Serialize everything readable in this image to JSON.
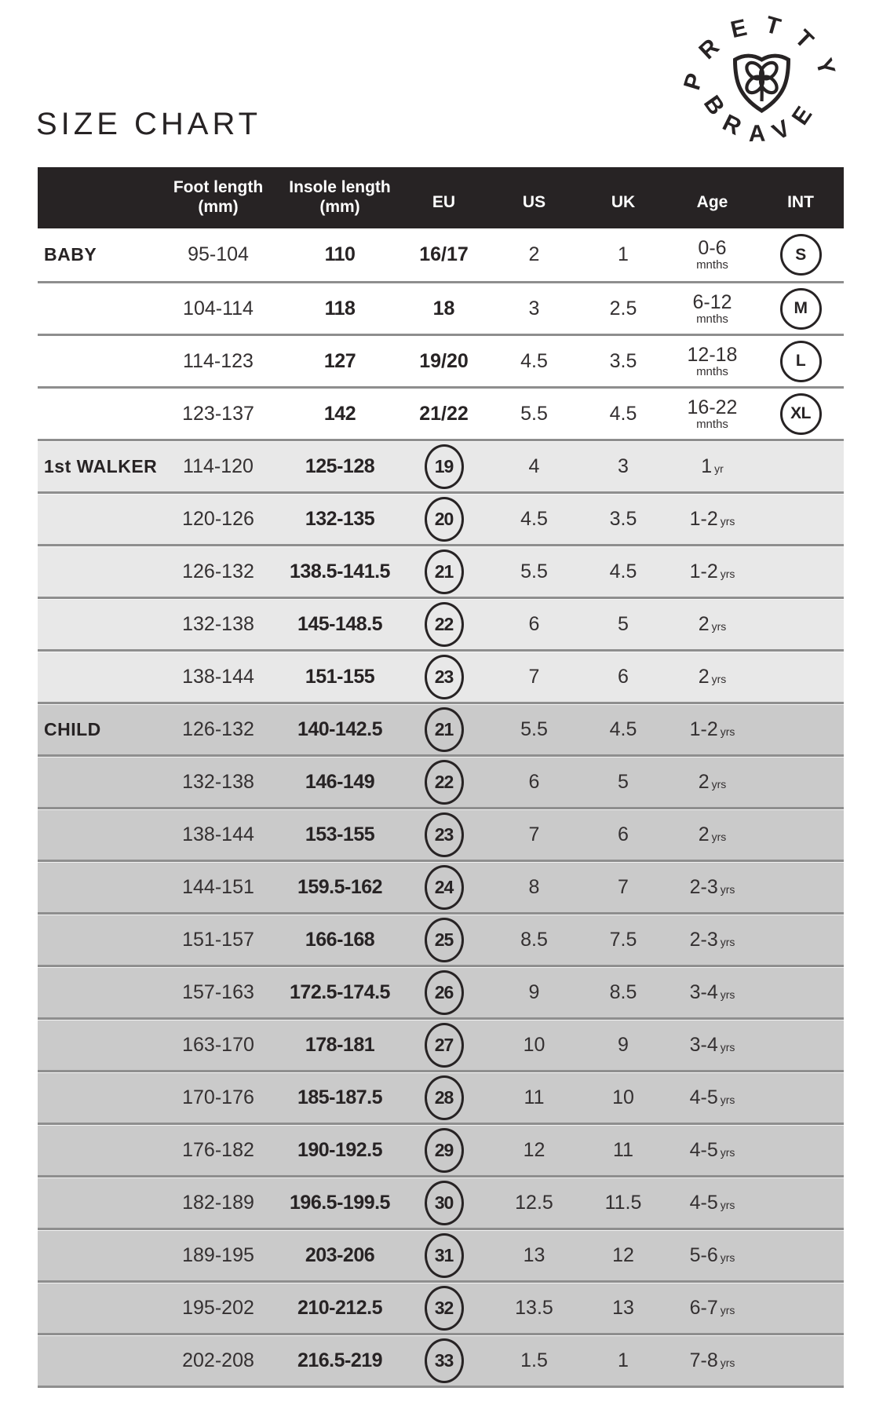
{
  "page": {
    "title": "SIZE CHART"
  },
  "logo": {
    "arc_top": "PRETTY",
    "arc_bottom": "BRAVE",
    "icon": "shield-clover",
    "color": "#272324"
  },
  "colors": {
    "header_bg": "#272324",
    "header_text": "#ffffff",
    "baby_bg": "#ffffff",
    "walker_bg": "#e8e8e8",
    "child_bg": "#cacaca",
    "separator": "#8e8e8e"
  },
  "table": {
    "header": {
      "category": "",
      "foot_length": {
        "line1": "Foot length",
        "line2": "(mm)"
      },
      "insole_length": {
        "line1": "Insole length",
        "line2": "(mm)"
      },
      "eu": "EU",
      "us": "US",
      "uk": "UK",
      "age": "Age",
      "int": "INT"
    },
    "sections": [
      {
        "name": "BABY",
        "bg": "#ffffff",
        "age_layout": "stacked",
        "eu_circled": false,
        "rows": [
          {
            "foot": "95-104",
            "insole": "110",
            "eu": "16/17",
            "us": "2",
            "uk": "1",
            "age": "0-6",
            "age_unit": "mnths",
            "int": "S"
          },
          {
            "foot": "104-114",
            "insole": "118",
            "eu": "18",
            "us": "3",
            "uk": "2.5",
            "age": "6-12",
            "age_unit": "mnths",
            "int": "M"
          },
          {
            "foot": "114-123",
            "insole": "127",
            "eu": "19/20",
            "us": "4.5",
            "uk": "3.5",
            "age": "12-18",
            "age_unit": "mnths",
            "int": "L"
          },
          {
            "foot": "123-137",
            "insole": "142",
            "eu": "21/22",
            "us": "5.5",
            "uk": "4.5",
            "age": "16-22",
            "age_unit": "mnths",
            "int": "XL"
          }
        ]
      },
      {
        "name": "1st WALKER",
        "bg": "#e8e8e8",
        "age_layout": "inline",
        "eu_circled": true,
        "rows": [
          {
            "foot": "114-120",
            "insole": "125-128",
            "eu": "19",
            "us": "4",
            "uk": "3",
            "age": "1",
            "age_unit": "yr"
          },
          {
            "foot": "120-126",
            "insole": "132-135",
            "eu": "20",
            "us": "4.5",
            "uk": "3.5",
            "age": "1-2",
            "age_unit": "yrs"
          },
          {
            "foot": "126-132",
            "insole": "138.5-141.5",
            "eu": "21",
            "us": "5.5",
            "uk": "4.5",
            "age": "1-2",
            "age_unit": "yrs"
          },
          {
            "foot": "132-138",
            "insole": "145-148.5",
            "eu": "22",
            "us": "6",
            "uk": "5",
            "age": "2",
            "age_unit": "yrs"
          },
          {
            "foot": "138-144",
            "insole": "151-155",
            "eu": "23",
            "us": "7",
            "uk": "6",
            "age": "2",
            "age_unit": "yrs"
          }
        ]
      },
      {
        "name": "CHILD",
        "bg": "#cacaca",
        "age_layout": "inline",
        "eu_circled": true,
        "rows": [
          {
            "foot": "126-132",
            "insole": "140-142.5",
            "eu": "21",
            "us": "5.5",
            "uk": "4.5",
            "age": "1-2",
            "age_unit": "yrs"
          },
          {
            "foot": "132-138",
            "insole": "146-149",
            "eu": "22",
            "us": "6",
            "uk": "5",
            "age": "2",
            "age_unit": "yrs"
          },
          {
            "foot": "138-144",
            "insole": "153-155",
            "eu": "23",
            "us": "7",
            "uk": "6",
            "age": "2",
            "age_unit": "yrs"
          },
          {
            "foot": "144-151",
            "insole": "159.5-162",
            "eu": "24",
            "us": "8",
            "uk": "7",
            "age": "2-3",
            "age_unit": "yrs"
          },
          {
            "foot": "151-157",
            "insole": "166-168",
            "eu": "25",
            "us": "8.5",
            "uk": "7.5",
            "age": "2-3",
            "age_unit": "yrs"
          },
          {
            "foot": "157-163",
            "insole": "172.5-174.5",
            "eu": "26",
            "us": "9",
            "uk": "8.5",
            "age": "3-4",
            "age_unit": "yrs"
          },
          {
            "foot": "163-170",
            "insole": "178-181",
            "eu": "27",
            "us": "10",
            "uk": "9",
            "age": "3-4",
            "age_unit": "yrs"
          },
          {
            "foot": "170-176",
            "insole": "185-187.5",
            "eu": "28",
            "us": "11",
            "uk": "10",
            "age": "4-5",
            "age_unit": "yrs"
          },
          {
            "foot": "176-182",
            "insole": "190-192.5",
            "eu": "29",
            "us": "12",
            "uk": "11",
            "age": "4-5",
            "age_unit": "yrs"
          },
          {
            "foot": "182-189",
            "insole": "196.5-199.5",
            "eu": "30",
            "us": "12.5",
            "uk": "11.5",
            "age": "4-5",
            "age_unit": "yrs"
          },
          {
            "foot": "189-195",
            "insole": "203-206",
            "eu": "31",
            "us": "13",
            "uk": "12",
            "age": "5-6",
            "age_unit": "yrs"
          },
          {
            "foot": "195-202",
            "insole": "210-212.5",
            "eu": "32",
            "us": "13.5",
            "uk": "13",
            "age": "6-7",
            "age_unit": "yrs"
          },
          {
            "foot": "202-208",
            "insole": "216.5-219",
            "eu": "33",
            "us": "1.5",
            "uk": "1",
            "age": "7-8",
            "age_unit": "yrs"
          }
        ]
      }
    ]
  }
}
